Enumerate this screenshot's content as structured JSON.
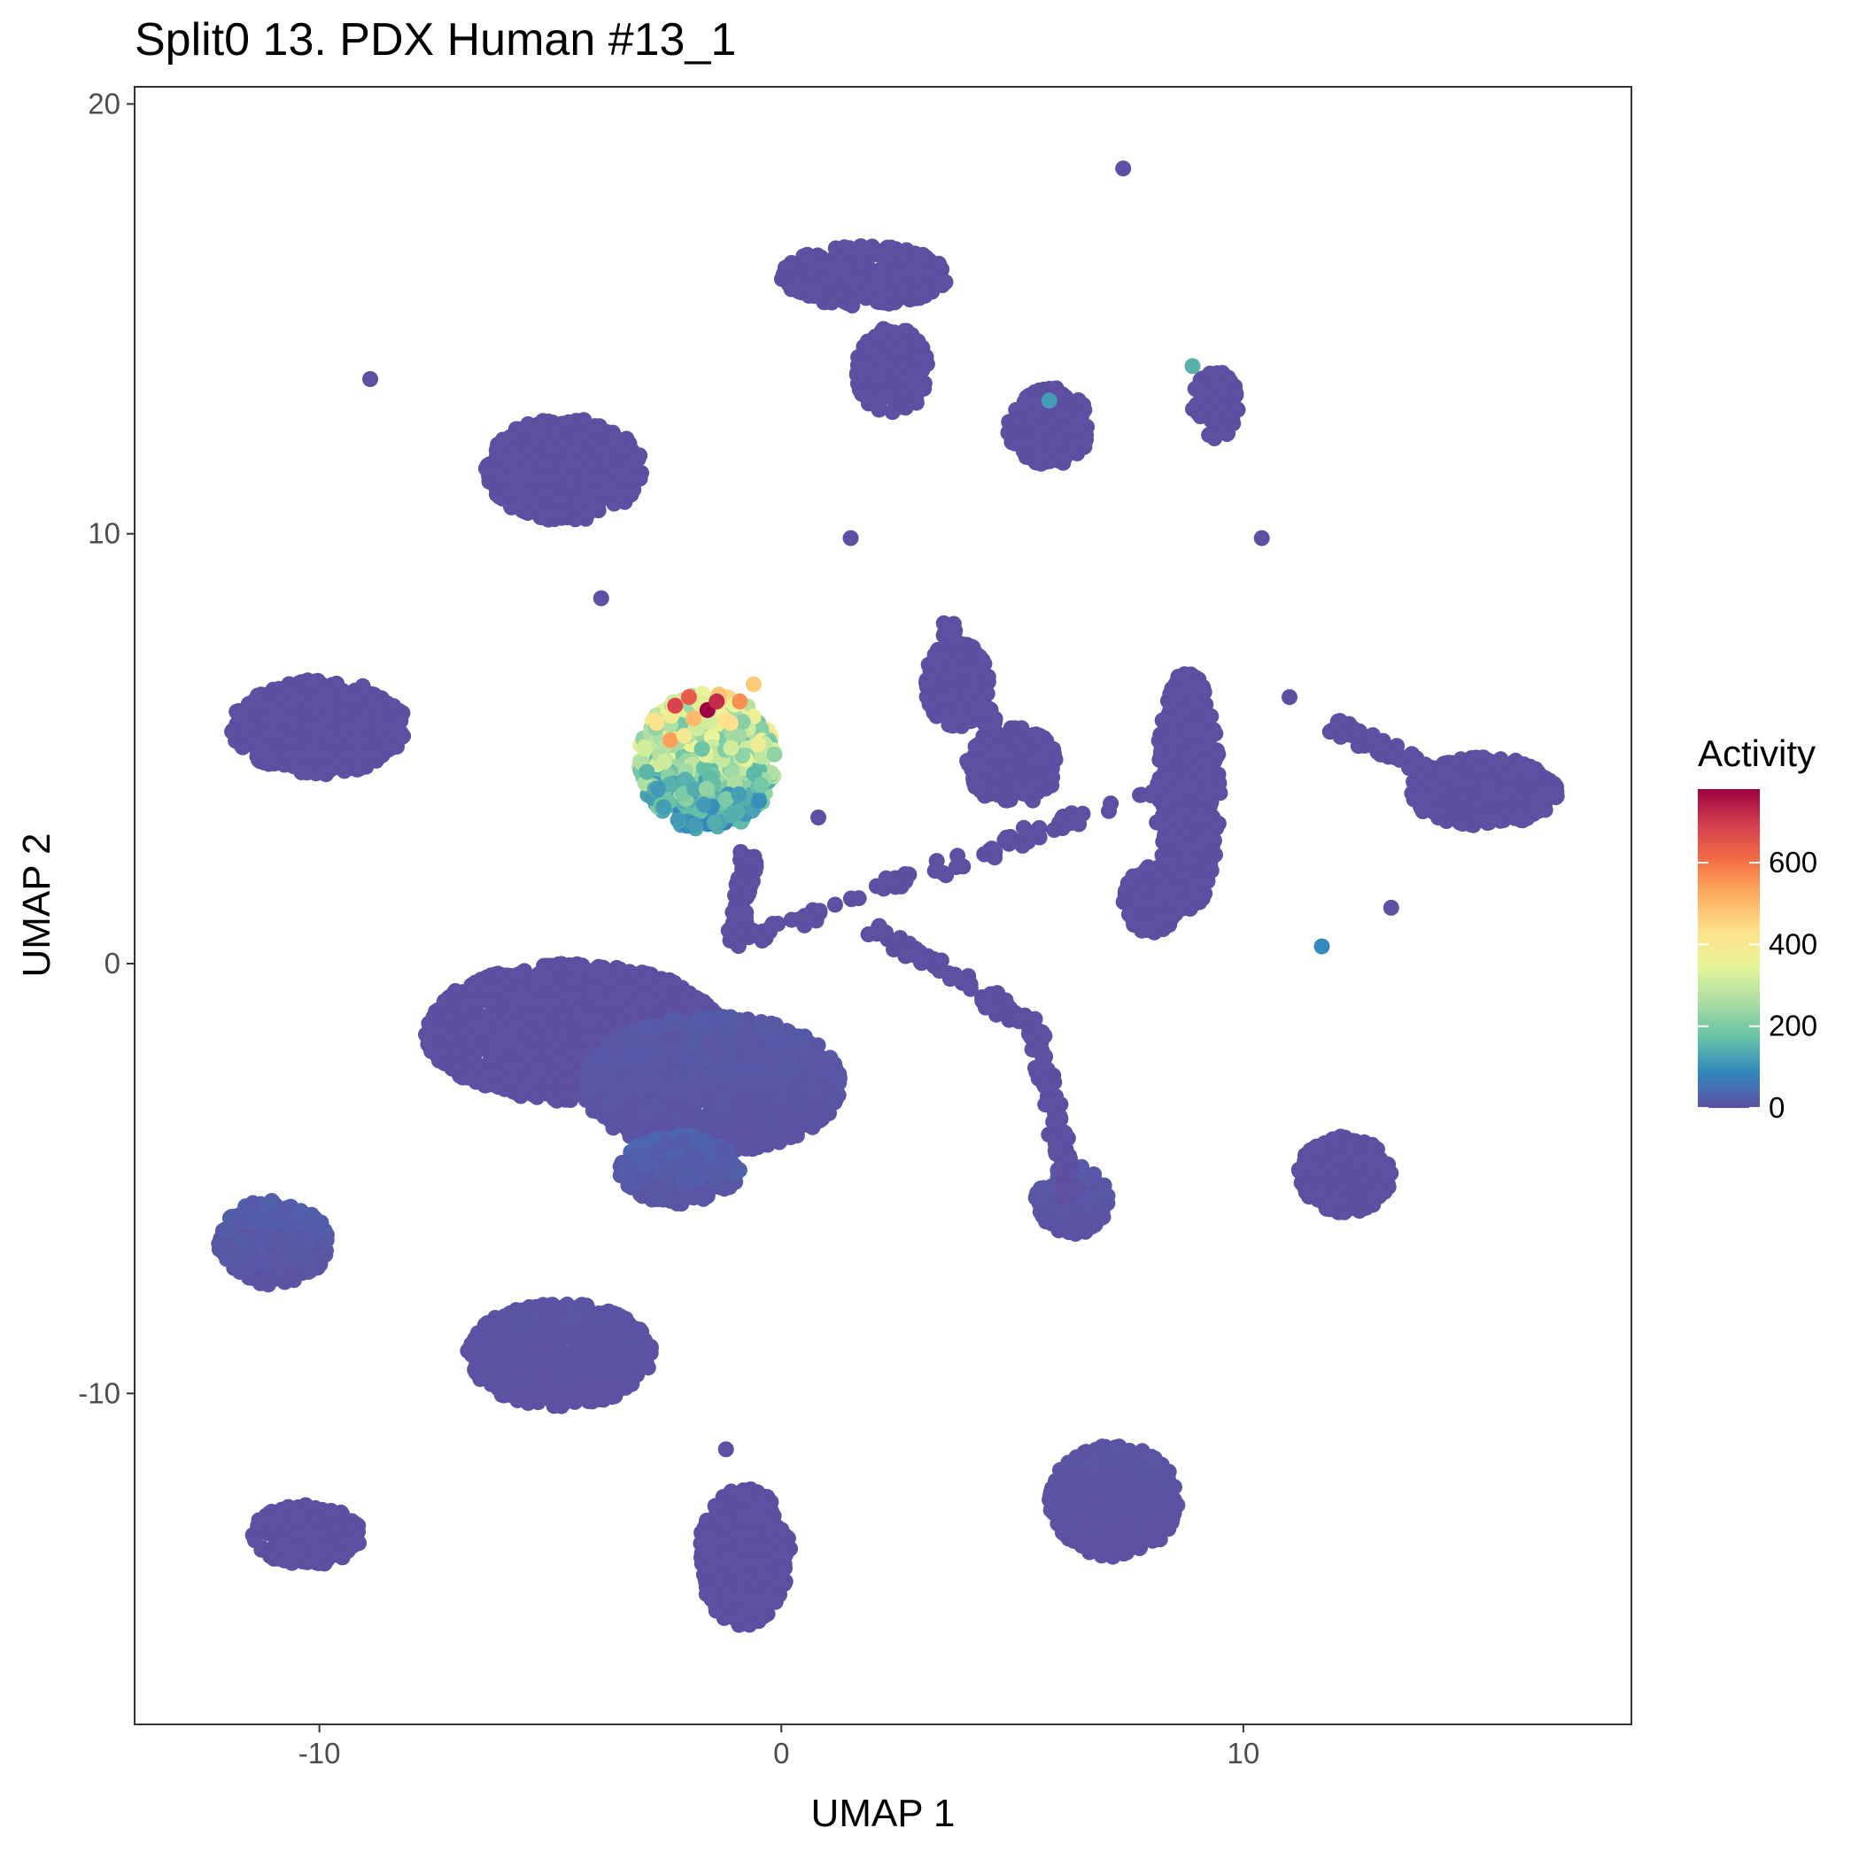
{
  "chart_data": {
    "type": "scatter",
    "title": "Split0 13. PDX Human #13_1",
    "xlabel": "UMAP 1",
    "ylabel": "UMAP 2",
    "xlim": [
      -14,
      18.4
    ],
    "ylim": [
      -17.7,
      20.4
    ],
    "x_ticks": [
      -10,
      0,
      10
    ],
    "x_tick_labels": [
      "-10",
      "0",
      "10"
    ],
    "y_ticks": [
      -10,
      0,
      10,
      20
    ],
    "y_tick_labels": [
      "-10",
      "0",
      "10",
      "20"
    ],
    "grid": false,
    "legend": {
      "title": "Activity",
      "position": "right",
      "range": [
        0,
        780
      ],
      "ticks": [
        0,
        200,
        400,
        600
      ],
      "tick_labels": [
        "0",
        "200",
        "400",
        "600"
      ],
      "palette": [
        "#5e4fa2",
        "#3288bd",
        "#66c2a5",
        "#abdda4",
        "#e6f598",
        "#fee08b",
        "#fdae61",
        "#f46d43",
        "#d53e4f",
        "#9e0142"
      ]
    },
    "clusters": [
      {
        "cx": -4.7,
        "cy": 11.5,
        "rx": 1.7,
        "ry": 1.2,
        "activity": 0
      },
      {
        "cx": -10.0,
        "cy": 5.5,
        "rx": 1.9,
        "ry": 1.1,
        "activity": 0
      },
      {
        "cx": 1.8,
        "cy": 16.0,
        "rx": 1.8,
        "ry": 0.7,
        "activity": 0
      },
      {
        "cx": 2.4,
        "cy": 13.8,
        "rx": 0.8,
        "ry": 1.0,
        "activity": 0
      },
      {
        "cx": 5.8,
        "cy": 12.5,
        "rx": 0.9,
        "ry": 0.9,
        "activity": 0
      },
      {
        "cx": 9.4,
        "cy": 13.0,
        "rx": 0.5,
        "ry": 0.8,
        "activity": 0
      },
      {
        "cx": -4.5,
        "cy": -1.6,
        "rx": 3.2,
        "ry": 1.6,
        "activity": 0
      },
      {
        "cx": -1.5,
        "cy": -2.8,
        "rx": 2.8,
        "ry": 1.6,
        "activity": 10
      },
      {
        "cx": -2.2,
        "cy": -4.8,
        "rx": 1.3,
        "ry": 0.8,
        "activity": 20
      },
      {
        "cx": -11.0,
        "cy": -6.5,
        "rx": 1.2,
        "ry": 1.0,
        "activity": 15
      },
      {
        "cx": -4.8,
        "cy": -9.1,
        "rx": 2.0,
        "ry": 1.2,
        "activity": 5
      },
      {
        "cx": -10.3,
        "cy": -13.3,
        "rx": 1.2,
        "ry": 0.7,
        "activity": 0
      },
      {
        "cx": -0.8,
        "cy": -13.8,
        "rx": 1.0,
        "ry": 1.6,
        "activity": 0
      },
      {
        "cx": 7.2,
        "cy": -12.5,
        "rx": 1.4,
        "ry": 1.3,
        "activity": 5
      },
      {
        "cx": 3.8,
        "cy": 6.5,
        "rx": 0.7,
        "ry": 1.0,
        "activity": 0
      },
      {
        "cx": 5.0,
        "cy": 4.6,
        "rx": 1.0,
        "ry": 0.9,
        "activity": 0
      },
      {
        "cx": 8.8,
        "cy": 4.0,
        "rx": 0.7,
        "ry": 2.8,
        "activity": 0
      },
      {
        "cx": 8.0,
        "cy": 1.5,
        "rx": 0.6,
        "ry": 0.8,
        "activity": 0
      },
      {
        "cx": 15.2,
        "cy": 4.0,
        "rx": 1.6,
        "ry": 0.8,
        "activity": 0
      },
      {
        "cx": 12.2,
        "cy": -4.9,
        "rx": 1.0,
        "ry": 0.9,
        "activity": 0
      },
      {
        "cx": 6.3,
        "cy": -5.5,
        "rx": 0.8,
        "ry": 0.8,
        "activity": 10
      },
      {
        "cx": -1.6,
        "cy": 4.7,
        "rx": 1.5,
        "ry": 1.6,
        "activity": 250
      }
    ],
    "trajectories": [
      {
        "x1": -1.0,
        "y1": 0.5,
        "x2": 8.0,
        "y2": 4.0
      },
      {
        "x1": 2.0,
        "y1": 0.8,
        "x2": 5.5,
        "y2": -1.5
      },
      {
        "x1": 5.5,
        "y1": -1.5,
        "x2": 6.3,
        "y2": -5.5
      },
      {
        "x1": 12.0,
        "y1": 5.5,
        "x2": 15.0,
        "y2": 4.0
      },
      {
        "x1": -0.7,
        "y1": 2.5,
        "x2": -1.0,
        "y2": 0.5
      },
      {
        "x1": 3.6,
        "y1": 7.8,
        "x2": 5.2,
        "y2": 4.0
      }
    ],
    "outliers": [
      {
        "x": 7.4,
        "y": 18.5,
        "activity": 0
      },
      {
        "x": -8.9,
        "y": 13.6,
        "activity": 0
      },
      {
        "x": 1.5,
        "y": 9.9,
        "activity": 0
      },
      {
        "x": 10.4,
        "y": 9.9,
        "activity": 0
      },
      {
        "x": 11.7,
        "y": 0.4,
        "activity": 90
      },
      {
        "x": 13.2,
        "y": 1.3,
        "activity": 0
      },
      {
        "x": 8.9,
        "y": 13.9,
        "activity": 150
      },
      {
        "x": 5.8,
        "y": 13.1,
        "activity": 120
      },
      {
        "x": -1.2,
        "y": -11.3,
        "activity": 0
      },
      {
        "x": -3.9,
        "y": 8.5,
        "activity": 0
      },
      {
        "x": 11.0,
        "y": 6.2,
        "activity": 0
      },
      {
        "x": 0.8,
        "y": 3.4,
        "activity": 0
      }
    ],
    "hotspots": [
      {
        "x": -1.6,
        "y": 5.9,
        "activity": 780
      },
      {
        "x": -2.3,
        "y": 6.0,
        "activity": 680
      },
      {
        "x": -1.4,
        "y": 6.1,
        "activity": 720
      },
      {
        "x": -2.0,
        "y": 6.2,
        "activity": 640
      },
      {
        "x": -0.9,
        "y": 6.1,
        "activity": 560
      },
      {
        "x": -2.4,
        "y": 5.2,
        "activity": 540
      },
      {
        "x": -1.1,
        "y": 5.6,
        "activity": 430
      },
      {
        "x": -2.7,
        "y": 5.6,
        "activity": 420
      },
      {
        "x": -0.6,
        "y": 6.5,
        "activity": 470
      },
      {
        "x": -0.5,
        "y": 5.1,
        "activity": 380
      },
      {
        "x": -1.9,
        "y": 5.7,
        "activity": 500
      },
      {
        "x": -2.1,
        "y": 5.3,
        "activity": 400
      }
    ]
  }
}
